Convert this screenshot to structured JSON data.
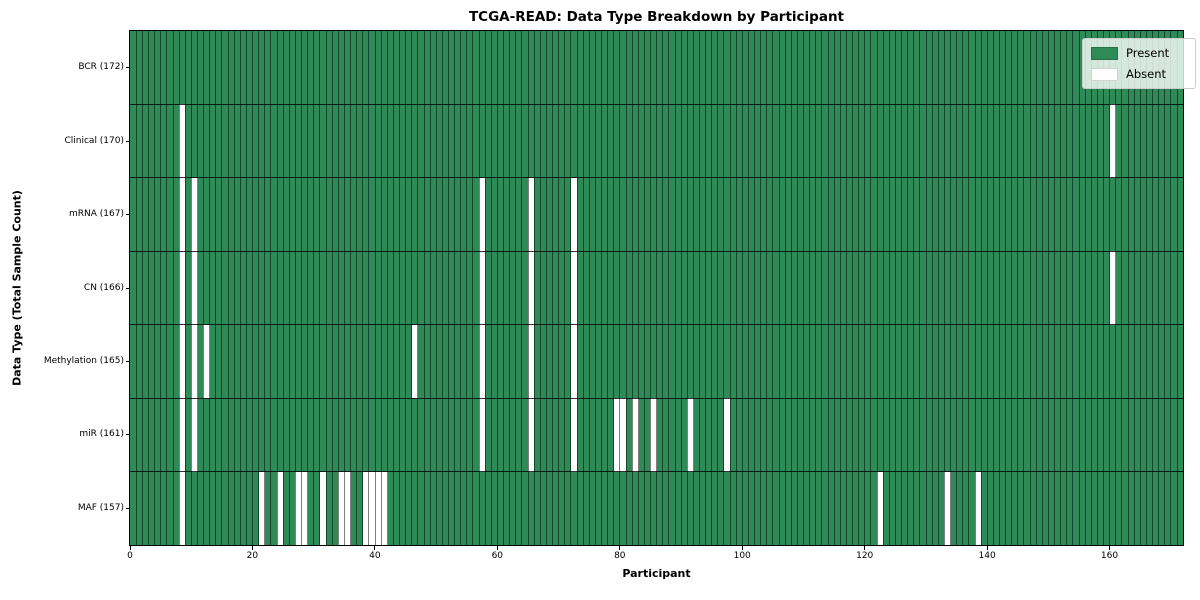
{
  "chart_data": {
    "type": "heatmap",
    "title": "TCGA-READ: Data Type Breakdown by Participant",
    "xlabel": "Participant",
    "ylabel": "Data Type (Total Sample Count)",
    "n_participants": 172,
    "x_ticks": [
      0,
      20,
      40,
      60,
      80,
      100,
      120,
      140,
      160
    ],
    "grid": "per-participant vertical gridlines and row separator lines",
    "legend_position": "upper right",
    "legend": [
      {
        "label": "Present",
        "color": "#2e8b57"
      },
      {
        "label": "Absent",
        "color": "#ffffff"
      }
    ],
    "colors": {
      "present": "#2e8b57",
      "absent": "#ffffff",
      "gridline": "rgba(0,0,0,0.5)",
      "row_separator": "rgba(0,0,0,0.8)"
    },
    "rows": [
      {
        "label": "BCR (172)",
        "total_samples": 172,
        "absent_participants": []
      },
      {
        "label": "Clinical (170)",
        "total_samples": 170,
        "absent_participants": [
          8,
          160
        ]
      },
      {
        "label": "mRNA (167)",
        "total_samples": 167,
        "absent_participants": [
          8,
          10,
          57,
          65,
          72
        ]
      },
      {
        "label": "CN (166)",
        "total_samples": 166,
        "absent_participants": [
          8,
          10,
          57,
          65,
          72,
          160
        ]
      },
      {
        "label": "Methylation (165)",
        "total_samples": 165,
        "absent_participants": [
          8,
          10,
          12,
          46,
          57,
          65,
          72
        ]
      },
      {
        "label": "miR (161)",
        "total_samples": 161,
        "absent_participants": [
          8,
          10,
          57,
          65,
          72,
          79,
          80,
          82,
          85,
          91,
          97
        ]
      },
      {
        "label": "MAF (157)",
        "total_samples": 157,
        "absent_participants": [
          8,
          21,
          24,
          27,
          28,
          31,
          34,
          35,
          38,
          39,
          40,
          41,
          122,
          133,
          138
        ]
      }
    ]
  }
}
